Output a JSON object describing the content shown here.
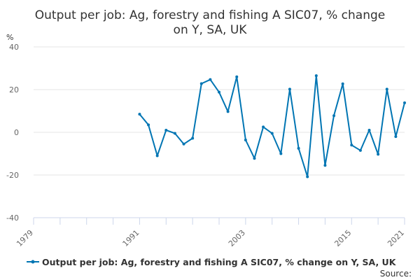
{
  "chart_data": {
    "type": "line",
    "title_lines": [
      "Output per job: Ag, forestry and fishing A SIC07, % change",
      "on Y, SA, UK"
    ],
    "ylabel": "%",
    "ylim": [
      -40,
      40
    ],
    "yticks": [
      40,
      20,
      0,
      -20,
      -40
    ],
    "xlim": [
      1979,
      2021
    ],
    "xticks": [
      1979,
      1991,
      2003,
      2015,
      2021
    ],
    "series": [
      {
        "name": "Output per job: Ag, forestry and fishing A SIC07, % change on Y, SA, UK",
        "color": "#0075b3",
        "points": [
          [
            1991,
            8.5
          ],
          [
            1992,
            3.5
          ],
          [
            1993,
            -11
          ],
          [
            1994,
            1
          ],
          [
            1995,
            -0.5
          ],
          [
            1996,
            -5.5
          ],
          [
            1997,
            -2.8
          ],
          [
            1998,
            22.8
          ],
          [
            1999,
            24.7
          ],
          [
            2000,
            18.8
          ],
          [
            2001,
            9.7
          ],
          [
            2002,
            26
          ],
          [
            2003,
            -3.6
          ],
          [
            2004,
            -12.2
          ],
          [
            2005,
            2.5
          ],
          [
            2006,
            -0.5
          ],
          [
            2007,
            -10
          ],
          [
            2008,
            20.2
          ],
          [
            2009,
            -7.5
          ],
          [
            2010,
            -20.8
          ],
          [
            2011,
            26.5
          ],
          [
            2012,
            -15.5
          ],
          [
            2013,
            7.8
          ],
          [
            2014,
            22.7
          ],
          [
            2015,
            -6
          ],
          [
            2016,
            -8.5
          ],
          [
            2017,
            1
          ],
          [
            2018,
            -10.3
          ],
          [
            2019,
            20.2
          ],
          [
            2020,
            -2
          ],
          [
            2021,
            13.8
          ]
        ]
      }
    ],
    "grid": true,
    "legend": "bottom"
  },
  "footer": {
    "source_label": "Source:"
  }
}
